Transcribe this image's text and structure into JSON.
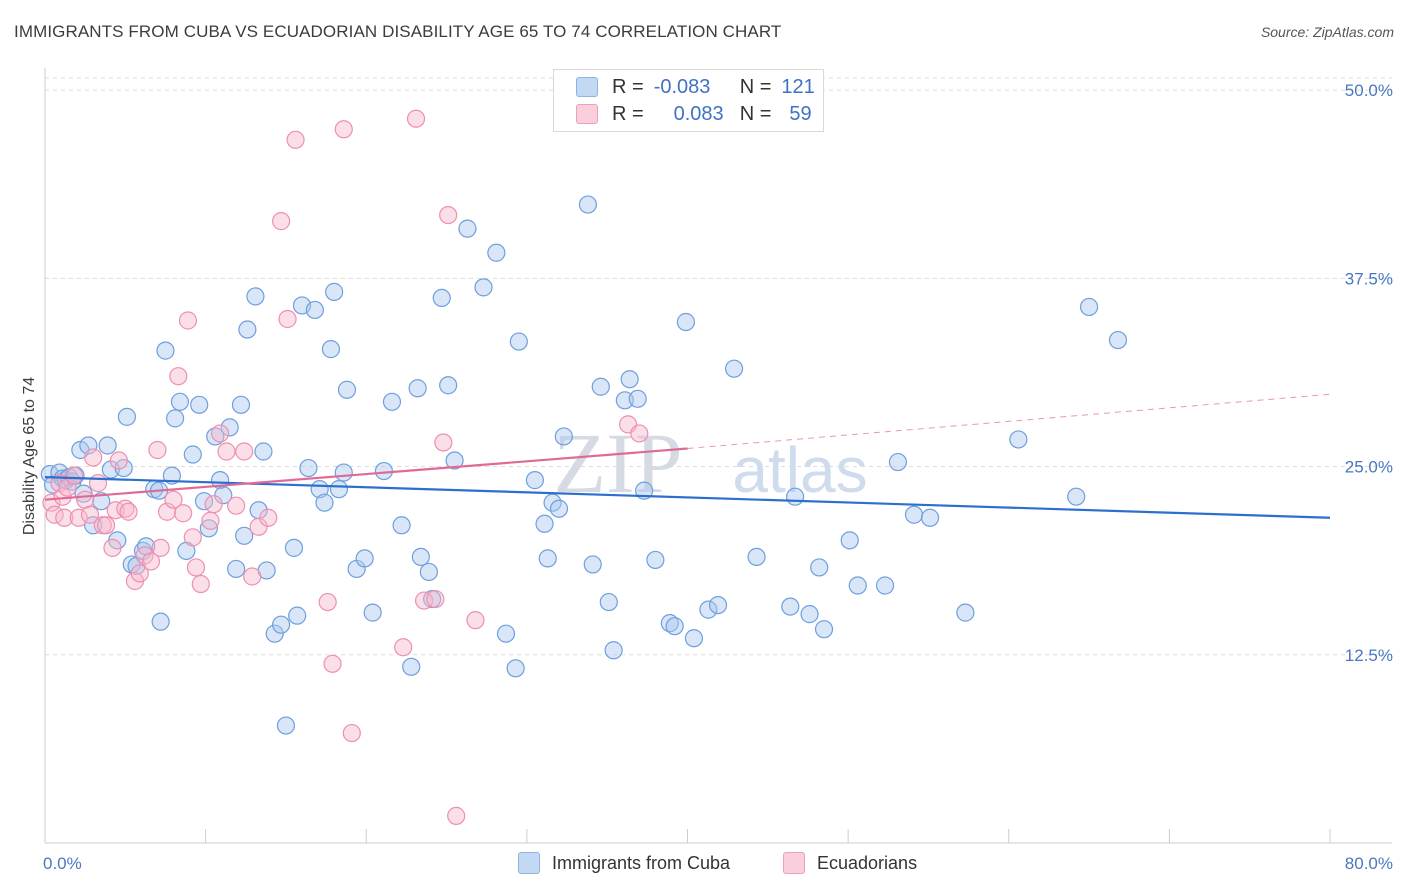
{
  "title": "IMMIGRANTS FROM CUBA VS ECUADORIAN DISABILITY AGE 65 TO 74 CORRELATION CHART",
  "source": "Source: ZipAtlas.com",
  "watermark": {
    "zip": "ZIP",
    "atlas": "atlas"
  },
  "legend": {
    "rows": [
      {
        "r_label": "R =",
        "r_value": "-0.083",
        "n_label": "N =",
        "n_value": "121",
        "color": "#a9c8ef"
      },
      {
        "r_label": "R =",
        "r_value": "0.083",
        "n_label": "N =",
        "n_value": "59",
        "color": "#f6b8cd"
      }
    ]
  },
  "bottom_legend": {
    "series1": "Immigrants from Cuba",
    "series2": "Ecuadorians"
  },
  "chart_data": {
    "type": "scatter",
    "ylabel": "Disability Age 65 to 74",
    "xlim": [
      0,
      80
    ],
    "ylim": [
      0,
      52
    ],
    "x_tick_labels": {
      "min": "0.0%",
      "max": "80.0%"
    },
    "y_ticks": [
      12.5,
      25.0,
      37.5,
      50.0
    ],
    "y_tick_labels": [
      "12.5%",
      "25.0%",
      "37.5%",
      "50.0%"
    ],
    "series": [
      {
        "name": "Immigrants from Cuba",
        "color": "#6f9fdc",
        "fill": "#a9c8ef",
        "line_color": "#2d6fcc",
        "trend": {
          "x0": 0,
          "y0": 24.3,
          "x1": 80,
          "y1": 21.6
        },
        "points": [
          [
            0.3,
            24.5
          ],
          [
            0.5,
            23.8
          ],
          [
            0.9,
            24.6
          ],
          [
            1.1,
            24.2
          ],
          [
            1.3,
            24.1
          ],
          [
            1.5,
            24.3
          ],
          [
            1.7,
            24.0
          ],
          [
            1.9,
            24.4
          ],
          [
            2.2,
            26.1
          ],
          [
            2.4,
            23.2
          ],
          [
            2.7,
            26.4
          ],
          [
            3.0,
            21.1
          ],
          [
            3.5,
            22.7
          ],
          [
            3.9,
            26.4
          ],
          [
            4.1,
            24.8
          ],
          [
            4.5,
            20.1
          ],
          [
            4.9,
            24.9
          ],
          [
            5.1,
            28.3
          ],
          [
            5.4,
            18.5
          ],
          [
            5.7,
            18.4
          ],
          [
            6.1,
            19.4
          ],
          [
            6.3,
            19.7
          ],
          [
            6.8,
            23.5
          ],
          [
            7.1,
            23.4
          ],
          [
            7.2,
            14.7
          ],
          [
            7.5,
            32.7
          ],
          [
            7.9,
            24.4
          ],
          [
            8.1,
            28.2
          ],
          [
            8.4,
            29.3
          ],
          [
            8.8,
            19.4
          ],
          [
            9.2,
            25.8
          ],
          [
            9.6,
            29.1
          ],
          [
            9.9,
            22.7
          ],
          [
            10.2,
            20.9
          ],
          [
            10.6,
            27.0
          ],
          [
            10.9,
            24.1
          ],
          [
            11.1,
            23.1
          ],
          [
            11.5,
            27.6
          ],
          [
            11.9,
            18.2
          ],
          [
            12.2,
            29.1
          ],
          [
            12.4,
            20.4
          ],
          [
            12.6,
            34.1
          ],
          [
            13.1,
            36.3
          ],
          [
            13.3,
            22.1
          ],
          [
            13.6,
            26.0
          ],
          [
            13.8,
            18.1
          ],
          [
            14.3,
            13.9
          ],
          [
            14.7,
            14.5
          ],
          [
            15.0,
            7.8
          ],
          [
            15.5,
            19.6
          ],
          [
            15.7,
            15.1
          ],
          [
            16.0,
            35.7
          ],
          [
            16.4,
            24.9
          ],
          [
            16.8,
            35.4
          ],
          [
            17.1,
            23.5
          ],
          [
            17.4,
            22.6
          ],
          [
            17.8,
            32.8
          ],
          [
            18.0,
            36.6
          ],
          [
            18.3,
            23.5
          ],
          [
            18.6,
            24.6
          ],
          [
            18.8,
            30.1
          ],
          [
            19.4,
            18.2
          ],
          [
            19.9,
            18.9
          ],
          [
            20.4,
            15.3
          ],
          [
            21.1,
            24.7
          ],
          [
            21.6,
            29.3
          ],
          [
            22.2,
            21.1
          ],
          [
            22.8,
            11.7
          ],
          [
            23.2,
            30.2
          ],
          [
            23.4,
            19.0
          ],
          [
            23.9,
            18.0
          ],
          [
            24.1,
            16.2
          ],
          [
            24.7,
            36.2
          ],
          [
            25.1,
            30.4
          ],
          [
            25.5,
            25.4
          ],
          [
            26.3,
            40.8
          ],
          [
            27.3,
            36.9
          ],
          [
            28.1,
            39.2
          ],
          [
            28.7,
            13.9
          ],
          [
            29.3,
            11.6
          ],
          [
            29.5,
            33.3
          ],
          [
            30.5,
            24.1
          ],
          [
            31.1,
            21.2
          ],
          [
            31.3,
            18.9
          ],
          [
            31.6,
            22.6
          ],
          [
            32.0,
            22.2
          ],
          [
            32.3,
            27.0
          ],
          [
            33.8,
            42.4
          ],
          [
            34.1,
            18.5
          ],
          [
            34.6,
            30.3
          ],
          [
            35.1,
            16.0
          ],
          [
            35.4,
            12.8
          ],
          [
            36.1,
            29.4
          ],
          [
            36.4,
            30.8
          ],
          [
            36.9,
            29.5
          ],
          [
            37.3,
            23.4
          ],
          [
            38.0,
            18.8
          ],
          [
            38.9,
            14.6
          ],
          [
            39.2,
            14.4
          ],
          [
            39.9,
            34.6
          ],
          [
            40.4,
            13.6
          ],
          [
            41.3,
            15.5
          ],
          [
            41.9,
            15.8
          ],
          [
            42.9,
            31.5
          ],
          [
            44.3,
            19.0
          ],
          [
            46.4,
            15.7
          ],
          [
            46.7,
            23.0
          ],
          [
            47.6,
            15.2
          ],
          [
            48.2,
            18.3
          ],
          [
            48.5,
            14.2
          ],
          [
            50.1,
            20.1
          ],
          [
            50.6,
            17.1
          ],
          [
            52.3,
            17.1
          ],
          [
            53.1,
            25.3
          ],
          [
            54.1,
            21.8
          ],
          [
            55.1,
            21.6
          ],
          [
            57.3,
            15.3
          ],
          [
            60.6,
            26.8
          ],
          [
            64.2,
            23.0
          ],
          [
            65.0,
            35.6
          ],
          [
            66.8,
            33.4
          ]
        ]
      },
      {
        "name": "Ecuadorians",
        "color": "#ee8fb0",
        "fill": "#f6b8cd",
        "line_color": "#e06a95",
        "trend": {
          "x0": 0,
          "y0": 22.8,
          "x1": 40,
          "y1": 26.2
        },
        "trend_dashed": {
          "x0": 40,
          "y0": 26.2,
          "x1": 80,
          "y1": 29.8
        },
        "points": [
          [
            0.4,
            22.6
          ],
          [
            0.6,
            21.8
          ],
          [
            0.9,
            23.9
          ],
          [
            1.1,
            23.0
          ],
          [
            1.2,
            21.6
          ],
          [
            1.4,
            23.6
          ],
          [
            1.8,
            24.4
          ],
          [
            2.1,
            21.6
          ],
          [
            2.5,
            22.8
          ],
          [
            2.8,
            21.8
          ],
          [
            3.0,
            25.6
          ],
          [
            3.3,
            23.9
          ],
          [
            3.6,
            21.1
          ],
          [
            3.8,
            21.1
          ],
          [
            4.2,
            19.6
          ],
          [
            4.4,
            22.1
          ],
          [
            4.6,
            25.4
          ],
          [
            5.0,
            22.2
          ],
          [
            5.2,
            22.0
          ],
          [
            5.6,
            17.4
          ],
          [
            5.9,
            17.9
          ],
          [
            6.2,
            19.1
          ],
          [
            6.6,
            18.7
          ],
          [
            7.0,
            26.1
          ],
          [
            7.2,
            19.6
          ],
          [
            7.6,
            22.0
          ],
          [
            8.0,
            22.8
          ],
          [
            8.3,
            31.0
          ],
          [
            8.6,
            21.9
          ],
          [
            8.9,
            34.7
          ],
          [
            9.2,
            20.3
          ],
          [
            9.4,
            18.3
          ],
          [
            9.7,
            17.2
          ],
          [
            10.3,
            21.4
          ],
          [
            10.5,
            22.5
          ],
          [
            10.9,
            27.2
          ],
          [
            11.3,
            26.0
          ],
          [
            11.9,
            22.4
          ],
          [
            12.4,
            26.0
          ],
          [
            12.9,
            17.7
          ],
          [
            13.3,
            21.0
          ],
          [
            13.9,
            21.6
          ],
          [
            14.7,
            41.3
          ],
          [
            15.1,
            34.8
          ],
          [
            15.6,
            46.7
          ],
          [
            17.6,
            16.0
          ],
          [
            17.9,
            11.9
          ],
          [
            18.6,
            47.4
          ],
          [
            19.1,
            7.3
          ],
          [
            22.3,
            13.0
          ],
          [
            23.1,
            48.1
          ],
          [
            23.6,
            16.1
          ],
          [
            24.3,
            16.2
          ],
          [
            24.8,
            26.6
          ],
          [
            25.1,
            41.7
          ],
          [
            25.6,
            1.8
          ],
          [
            26.8,
            14.8
          ],
          [
            36.3,
            27.8
          ],
          [
            37.0,
            27.2
          ]
        ]
      }
    ]
  }
}
